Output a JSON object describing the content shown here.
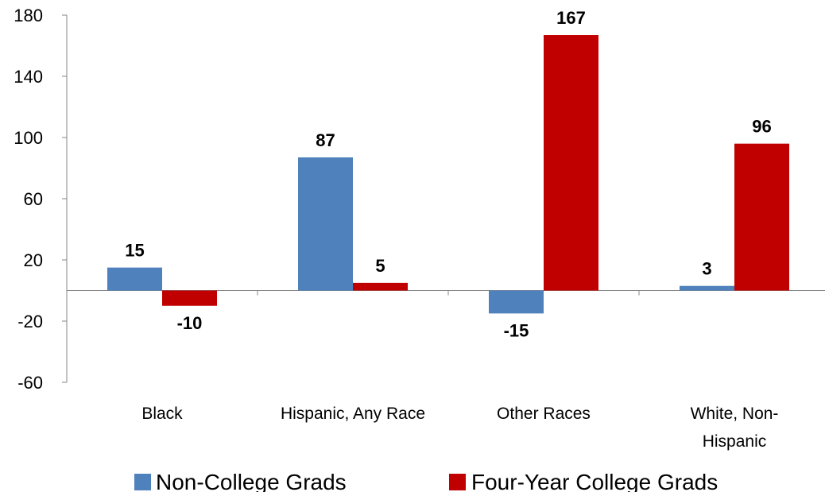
{
  "chart_data": {
    "type": "bar",
    "title": "",
    "xlabel": "",
    "ylabel": "",
    "ylim": [
      -60,
      180
    ],
    "yticks": [
      180,
      140,
      100,
      60,
      20,
      -20,
      -60
    ],
    "grid": false,
    "legend_position": "bottom",
    "categories": [
      [
        "Black"
      ],
      [
        "Hispanic, Any Race"
      ],
      [
        "Other Races"
      ],
      [
        "White, Non-",
        "Hispanic"
      ]
    ],
    "series": [
      {
        "name": "Non-College Grads",
        "color": "#4f81bd",
        "values": [
          15,
          87,
          -15,
          3
        ],
        "labels": [
          "15",
          "87",
          "-15",
          "3"
        ]
      },
      {
        "name": "Four-Year College Grads",
        "color": "#c00000",
        "values": [
          -10,
          5,
          167,
          96
        ],
        "labels": [
          "-10",
          "5",
          "167",
          "96"
        ]
      }
    ]
  }
}
